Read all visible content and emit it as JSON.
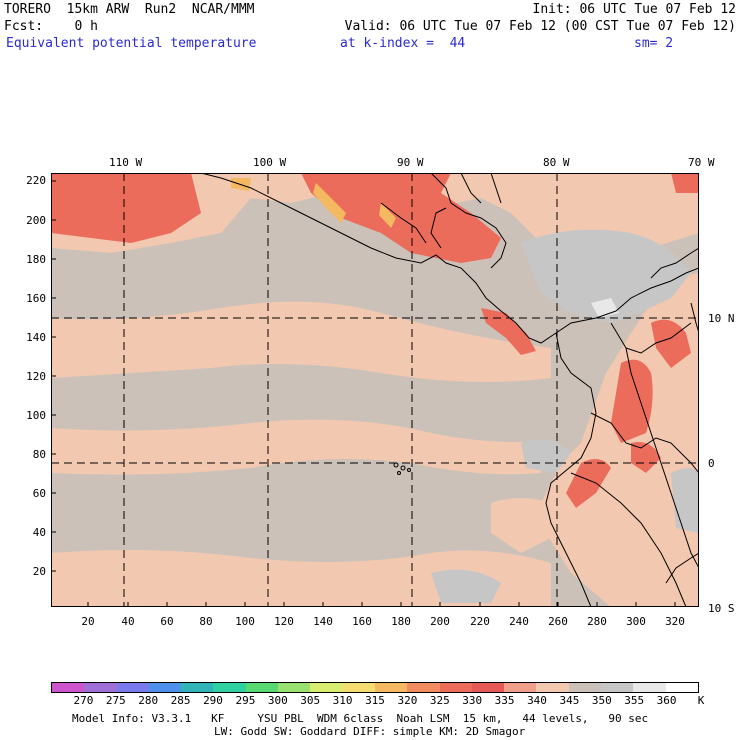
{
  "header": {
    "model": "TORERO",
    "resolution": "15km ARW",
    "run": "Run2",
    "source": "NCAR/MMM",
    "init": "Init: 06 UTC Tue 07 Feb 12",
    "fcst_label": "Fcst:",
    "fcst_value": "0 h",
    "valid": "Valid: 06 UTC Tue 07 Feb 12 (00 CST Tue 07 Feb 12)",
    "field": "Equivalent potential temperature",
    "level": "at k-index =  44",
    "smoothing": "sm= 2"
  },
  "map": {
    "lon_labels": [
      "110 W",
      "100 W",
      "90 W",
      "80 W",
      "70 W"
    ],
    "lat_labels": [
      "10 N",
      "0",
      "10 S"
    ],
    "y_ticks": [
      "220",
      "200",
      "180",
      "160",
      "140",
      "120",
      "100",
      "80",
      "60",
      "40",
      "20"
    ],
    "x_ticks": [
      "20",
      "40",
      "60",
      "80",
      "100",
      "120",
      "140",
      "160",
      "180",
      "200",
      "220",
      "240",
      "260",
      "280",
      "300",
      "320"
    ],
    "background_color": "#ccc1b8",
    "land_outline_color": "#000000"
  },
  "colorbar": {
    "colors": [
      "#cc55cc",
      "#a070d8",
      "#7a7aec",
      "#4e90ec",
      "#30b4b8",
      "#30d0a0",
      "#58d870",
      "#98e070",
      "#d8ec70",
      "#f4dc70",
      "#f4b860",
      "#f08c60",
      "#ec6c5c",
      "#e65a55",
      "#f0a08a",
      "#f2c8b0",
      "#ccc1b8",
      "#c6c6c6",
      "#e8e8e8",
      "#ffffff"
    ],
    "labels": [
      "270",
      "275",
      "280",
      "285",
      "290",
      "295",
      "300",
      "305",
      "310",
      "315",
      "320",
      "325",
      "330",
      "335",
      "340",
      "345",
      "350",
      "355",
      "360"
    ],
    "unit": "K"
  },
  "footer": {
    "line1": "Model Info: V3.3.1   KF     YSU PBL  WDM 6class  Noah LSM  15 km,   44 levels,   90 sec",
    "line2": "LW: Godd SW: Goddard DIFF: simple KM: 2D Smagor"
  }
}
